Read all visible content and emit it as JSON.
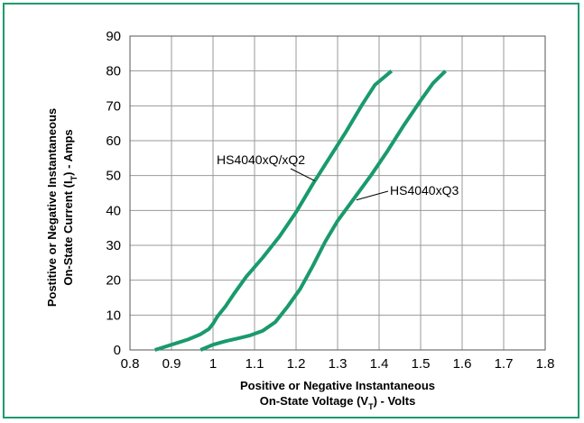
{
  "chart_data": {
    "type": "line",
    "xlabel_line1": "Positive or Negative Instantaneous",
    "xlabel_line2_prefix": "On-State Voltage (V",
    "xlabel_line2_sub": "T",
    "xlabel_line2_suffix": ") - Volts",
    "ylabel_line1": "Postitive or Negative Instantaneous",
    "ylabel_line2_prefix": "On-State Current (I",
    "ylabel_line2_sub": "T",
    "ylabel_line2_suffix": ") - Amps",
    "xlim": [
      0.8,
      1.8
    ],
    "ylim": [
      0,
      90
    ],
    "xticks": [
      "0.8",
      "0.9",
      "1",
      "1.1",
      "1.2",
      "1.3",
      "1.4",
      "1.5",
      "1.6",
      "1.7",
      "1.8"
    ],
    "yticks": [
      "0",
      "10",
      "20",
      "30",
      "40",
      "50",
      "60",
      "70",
      "80",
      "90"
    ],
    "grid": true,
    "line_color": "#1a9a6c",
    "series": [
      {
        "name": "HS4040xQ/xQ2",
        "x": [
          0.86,
          0.9,
          0.94,
          0.97,
          0.99,
          1.0,
          1.01,
          1.03,
          1.05,
          1.08,
          1.12,
          1.16,
          1.2,
          1.24,
          1.28,
          1.32,
          1.36,
          1.39,
          1.43
        ],
        "y": [
          0,
          1.5,
          3,
          4.5,
          6,
          7.5,
          9.5,
          12.5,
          16,
          21,
          26.5,
          32.5,
          39.5,
          47.5,
          55,
          62.5,
          70.5,
          76,
          80
        ]
      },
      {
        "name": "HS4040xQ3",
        "x": [
          0.97,
          1.0,
          1.03,
          1.06,
          1.09,
          1.12,
          1.15,
          1.18,
          1.21,
          1.24,
          1.27,
          1.3,
          1.34,
          1.38,
          1.42,
          1.46,
          1.5,
          1.53,
          1.56
        ],
        "y": [
          0,
          1.5,
          2.5,
          3.3,
          4.2,
          5.5,
          8,
          12.5,
          17.5,
          24,
          31,
          37,
          43.5,
          50,
          57,
          64.5,
          71.5,
          76.5,
          80
        ]
      }
    ]
  }
}
